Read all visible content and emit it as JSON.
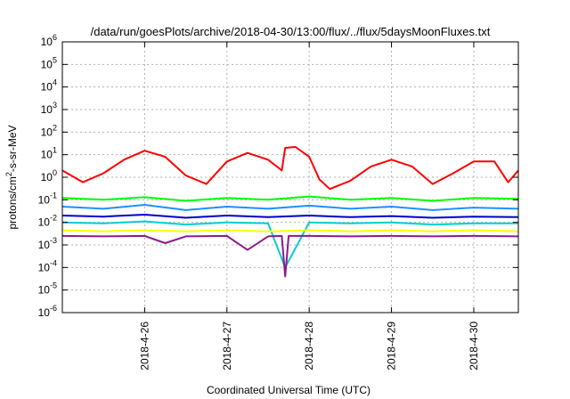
{
  "chart_data": {
    "type": "line",
    "title": "/data/run/goesPlots/archive/2018-04-30/13:00/flux/../flux/5daysMoonFluxes.txt",
    "xlabel": "Coordinated Universal Time (UTC)",
    "ylabel": "protons/cm²-s-sr-MeV",
    "ylabel_parts": {
      "base": "protons/cm",
      "sup": "2",
      "rest": "-s-sr-MeV"
    },
    "yscale": "log",
    "ylim": [
      1e-06,
      1000000.0
    ],
    "xlim": [
      "2018-04-25 00:00",
      "2018-04-30 13:00"
    ],
    "xtick_labels": [
      "2018-4-26",
      "2018-4-27",
      "2018-4-28",
      "2018-4-29",
      "2018-4-30"
    ],
    "ytick_labels": [
      {
        "base": "10",
        "exp": "6"
      },
      {
        "base": "10",
        "exp": "5"
      },
      {
        "base": "10",
        "exp": "4"
      },
      {
        "base": "10",
        "exp": "3"
      },
      {
        "base": "10",
        "exp": "2"
      },
      {
        "base": "10",
        "exp": "1"
      },
      {
        "base": "10",
        "exp": "0"
      },
      {
        "base": "10",
        "exp": "-1"
      },
      {
        "base": "10",
        "exp": "-2"
      },
      {
        "base": "10",
        "exp": "-3"
      },
      {
        "base": "10",
        "exp": "-4"
      },
      {
        "base": "10",
        "exp": "-5"
      },
      {
        "base": "10",
        "exp": "-6"
      }
    ],
    "grid": true,
    "series": [
      {
        "color": "#ff0000",
        "width": 2,
        "x": [
          "2018-04-25 00:00",
          "2018-04-25 06:00",
          "2018-04-25 12:00",
          "2018-04-25 18:00",
          "2018-04-26 00:00",
          "2018-04-26 06:00",
          "2018-04-26 12:00",
          "2018-04-26 18:00",
          "2018-04-27 00:00",
          "2018-04-27 06:00",
          "2018-04-27 12:00",
          "2018-04-27 16:00",
          "2018-04-27 17:00",
          "2018-04-27 20:00",
          "2018-04-28 00:00",
          "2018-04-28 03:00",
          "2018-04-28 06:00",
          "2018-04-28 12:00",
          "2018-04-28 18:00",
          "2018-04-29 00:00",
          "2018-04-29 06:00",
          "2018-04-29 12:00",
          "2018-04-29 18:00",
          "2018-04-30 00:00",
          "2018-04-30 06:00",
          "2018-04-30 10:00",
          "2018-04-30 13:00"
        ],
        "y": [
          2,
          0.6,
          1.5,
          6,
          15,
          8,
          1.2,
          0.5,
          5,
          12,
          6,
          2,
          20,
          22,
          8,
          0.8,
          0.3,
          0.7,
          3,
          6,
          3,
          0.5,
          1.5,
          5,
          5,
          0.6,
          2
        ]
      },
      {
        "color": "#00ff00",
        "width": 2,
        "x": [
          "2018-04-25 00:00",
          "2018-04-25 12:00",
          "2018-04-26 00:00",
          "2018-04-26 12:00",
          "2018-04-27 00:00",
          "2018-04-27 12:00",
          "2018-04-28 00:00",
          "2018-04-28 12:00",
          "2018-04-29 00:00",
          "2018-04-29 12:00",
          "2018-04-30 00:00",
          "2018-04-30 13:00"
        ],
        "y": [
          0.12,
          0.1,
          0.13,
          0.09,
          0.12,
          0.1,
          0.14,
          0.1,
          0.12,
          0.09,
          0.12,
          0.11
        ]
      },
      {
        "color": "#1e90ff",
        "width": 2,
        "x": [
          "2018-04-25 00:00",
          "2018-04-25 12:00",
          "2018-04-26 00:00",
          "2018-04-26 12:00",
          "2018-04-27 00:00",
          "2018-04-27 12:00",
          "2018-04-28 00:00",
          "2018-04-28 12:00",
          "2018-04-29 00:00",
          "2018-04-29 12:00",
          "2018-04-30 00:00",
          "2018-04-30 13:00"
        ],
        "y": [
          0.05,
          0.04,
          0.06,
          0.035,
          0.05,
          0.04,
          0.055,
          0.04,
          0.05,
          0.035,
          0.045,
          0.04
        ]
      },
      {
        "color": "#0000cd",
        "width": 2,
        "x": [
          "2018-04-25 00:00",
          "2018-04-25 12:00",
          "2018-04-26 00:00",
          "2018-04-26 12:00",
          "2018-04-27 00:00",
          "2018-04-27 12:00",
          "2018-04-28 00:00",
          "2018-04-28 12:00",
          "2018-04-29 00:00",
          "2018-04-29 12:00",
          "2018-04-30 00:00",
          "2018-04-30 13:00"
        ],
        "y": [
          0.02,
          0.018,
          0.022,
          0.016,
          0.02,
          0.017,
          0.02,
          0.017,
          0.019,
          0.016,
          0.018,
          0.017
        ]
      },
      {
        "color": "#00ced1",
        "width": 2,
        "x": [
          "2018-04-25 00:00",
          "2018-04-25 12:00",
          "2018-04-26 00:00",
          "2018-04-26 12:00",
          "2018-04-27 00:00",
          "2018-04-27 12:00",
          "2018-04-27 17:00",
          "2018-04-28 00:00",
          "2018-04-28 12:00",
          "2018-04-29 00:00",
          "2018-04-29 12:00",
          "2018-04-30 00:00",
          "2018-04-30 13:00"
        ],
        "y": [
          0.01,
          0.009,
          0.011,
          0.008,
          0.01,
          0.009,
          0.0001,
          0.01,
          0.009,
          0.01,
          0.008,
          0.009,
          0.009
        ]
      },
      {
        "color": "#ffff00",
        "width": 2,
        "x": [
          "2018-04-25 00:00",
          "2018-04-25 12:00",
          "2018-04-26 00:00",
          "2018-04-26 12:00",
          "2018-04-27 00:00",
          "2018-04-27 12:00",
          "2018-04-28 00:00",
          "2018-04-28 12:00",
          "2018-04-29 00:00",
          "2018-04-29 12:00",
          "2018-04-30 00:00",
          "2018-04-30 13:00"
        ],
        "y": [
          0.0045,
          0.004,
          0.0045,
          0.004,
          0.0045,
          0.004,
          0.0045,
          0.004,
          0.0045,
          0.004,
          0.0045,
          0.004
        ]
      },
      {
        "color": "#8b1a89",
        "width": 2,
        "x": [
          "2018-04-25 00:00",
          "2018-04-25 12:00",
          "2018-04-26 00:00",
          "2018-04-26 06:00",
          "2018-04-26 12:00",
          "2018-04-27 00:00",
          "2018-04-27 06:00",
          "2018-04-27 12:00",
          "2018-04-27 16:00",
          "2018-04-27 17:00",
          "2018-04-27 18:00",
          "2018-04-28 00:00",
          "2018-04-28 12:00",
          "2018-04-29 00:00",
          "2018-04-29 12:00",
          "2018-04-30 00:00",
          "2018-04-30 13:00"
        ],
        "y": [
          0.0025,
          0.0024,
          0.0025,
          0.0012,
          0.0024,
          0.0025,
          0.0006,
          0.0024,
          0.0025,
          4e-05,
          0.0025,
          0.0025,
          0.0024,
          0.0025,
          0.0024,
          0.0025,
          0.0024
        ]
      }
    ]
  }
}
